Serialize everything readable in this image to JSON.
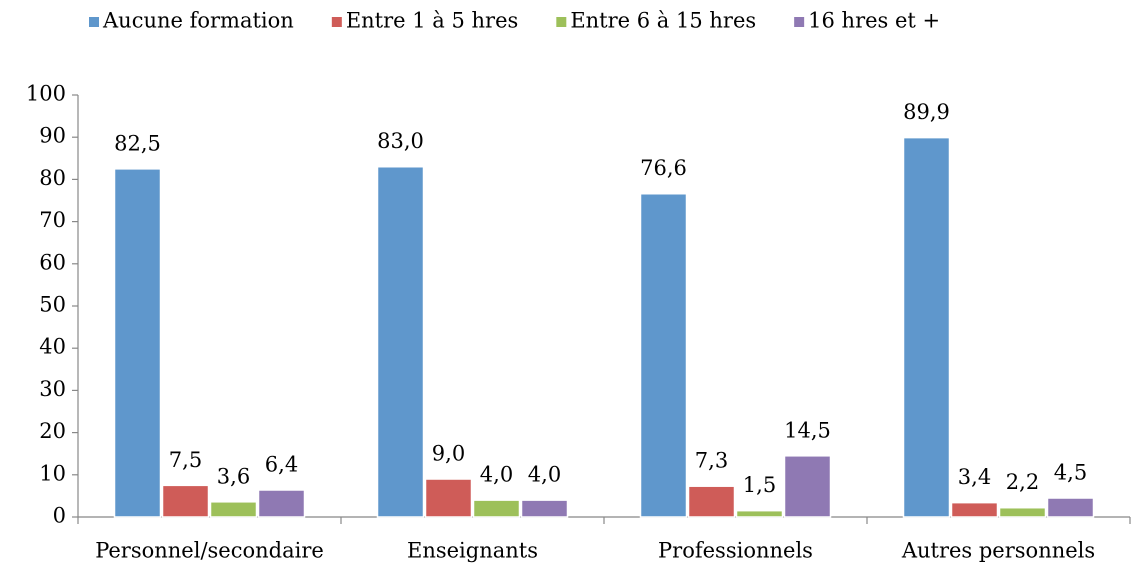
{
  "chart_data": {
    "type": "bar",
    "categories": [
      "Personnel/secondaire",
      "Enseignants",
      "Professionnels",
      "Autres personnels"
    ],
    "series": [
      {
        "name": "Aucune formation",
        "color": "#5f97cc",
        "values": [
          82.5,
          83.0,
          76.6,
          89.9
        ],
        "value_labels": [
          "82,5",
          "83,0",
          "76,6",
          "89,9"
        ]
      },
      {
        "name": "Entre 1 à 5 hres",
        "color": "#cf5c58",
        "values": [
          7.5,
          9.0,
          7.3,
          3.4
        ],
        "value_labels": [
          "7,5",
          "9,0",
          "7,3",
          "3,4"
        ]
      },
      {
        "name": "Entre 6 à 15 hres",
        "color": "#9dc05a",
        "values": [
          3.6,
          4.0,
          1.5,
          2.2
        ],
        "value_labels": [
          "3,6",
          "4,0",
          "1,5",
          "2,2"
        ]
      },
      {
        "name": "16 hres et +",
        "color": "#8f79b3",
        "values": [
          6.4,
          4.0,
          14.5,
          4.5
        ],
        "value_labels": [
          "6,4",
          "4,0",
          "14,5",
          "4,5"
        ]
      }
    ],
    "ylim": [
      0,
      100
    ],
    "yticks": [
      0,
      10,
      20,
      30,
      40,
      50,
      60,
      70,
      80,
      90,
      100
    ],
    "grid": false,
    "legend": "top"
  }
}
